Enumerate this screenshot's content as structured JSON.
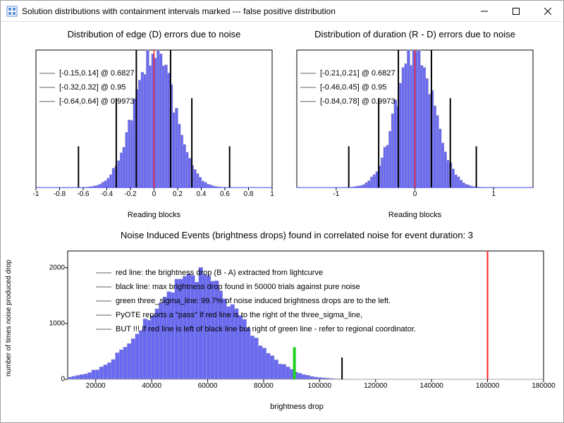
{
  "window": {
    "title": "Solution distributions with containment intervals marked --- false positive distribution"
  },
  "colors": {
    "hist_fill": "#6a6af0",
    "hist_outline": "#b8b8b8",
    "axis": "#000000",
    "red_line": "#ff2020",
    "green_line": "#20d020",
    "black_line": "#000000",
    "baseline": "#4040ff"
  },
  "chart1": {
    "title": "Distribution of edge (D) errors due to noise",
    "xlabel": "Reading blocks",
    "xlim": [
      -1,
      1
    ],
    "xticks": [
      -1,
      -0.8,
      -0.6,
      -0.4,
      -0.2,
      0,
      0.2,
      0.4,
      0.6,
      0.8,
      1
    ],
    "legend": [
      "[-0.15,0.14] @ 0.6827",
      "[-0.32,0.32] @ 0.95",
      "[-0.64,0.64] @ 0.9973"
    ],
    "vlines": [
      -0.64,
      -0.32,
      -0.15,
      0.14,
      0.32,
      0.64
    ],
    "vline_heights": [
      0.3,
      0.65,
      1.0,
      1.0,
      0.65,
      0.3
    ],
    "red_vline": 0,
    "hist_mu": 0,
    "hist_sigma": 0.17,
    "hist_peak": 1.0
  },
  "chart2": {
    "title": "Distribution of duration (R - D) errors due to noise",
    "xlabel": "Reading blocks",
    "xlim": [
      -1.5,
      1.5
    ],
    "xticks": [
      -1,
      0,
      1
    ],
    "legend": [
      "[-0.21,0.21] @ 0.6827",
      "[-0.46,0.45] @ 0.95",
      "[-0.84,0.78] @ 0.9973"
    ],
    "vlines": [
      -0.84,
      -0.46,
      -0.21,
      0.21,
      0.45,
      0.78
    ],
    "vline_heights": [
      0.3,
      0.65,
      1.0,
      1.0,
      0.65,
      0.3
    ],
    "red_vline": 0,
    "hist_mu": 0,
    "hist_sigma": 0.24,
    "hist_peak": 1.0
  },
  "chart3": {
    "title": "Noise Induced Events (brightness drops) found in correlated noise for event duration: 3",
    "xlabel": "brightness drop",
    "ylabel": "number of times noise produced drop",
    "xlim": [
      10000,
      180000
    ],
    "xticks": [
      20000,
      40000,
      60000,
      80000,
      100000,
      120000,
      140000,
      160000,
      180000
    ],
    "ylim": [
      0,
      2300
    ],
    "yticks": [
      0,
      1000,
      2000
    ],
    "legend": [
      "red line: the brightness drop (B - A) extracted from lightcurve",
      "black line: max brightness drop found in 50000 trials against pure noise",
      "green three_sigma_line: 99.7% of noise induced brightness drops are to the left.",
      "PyOTE reports a \"pass\" if red line is to the right of the three_sigma_line,",
      "BUT !!! If red line is left of black line but right of green line - refer to regional coordinator."
    ],
    "red_vline": 160000,
    "green_vline": 91000,
    "black_vline": 108000,
    "hist_mu": 55000,
    "hist_sigma": 16000,
    "hist_peak": 1.0
  }
}
